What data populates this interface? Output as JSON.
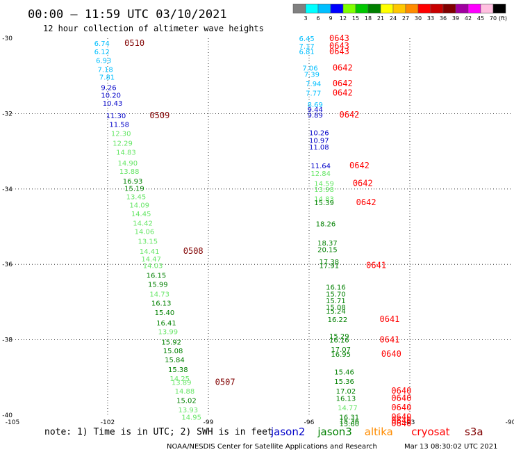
{
  "header": {
    "title": "00:00 – 11:59 UTC 03/10/2021",
    "subtitle": "12 hour collection of altimeter wave heights"
  },
  "colorbar": {
    "labels": [
      "3",
      "6",
      "9",
      "12",
      "15",
      "18",
      "21",
      "24",
      "27",
      "30",
      "33",
      "36",
      "39",
      "42",
      "45",
      "70"
    ],
    "colors": [
      "#808080",
      "#00ffff",
      "#00bfff",
      "#0000ff",
      "#80ff00",
      "#00c800",
      "#008000",
      "#ffff00",
      "#ffc800",
      "#ff8c00",
      "#ff0000",
      "#c80000",
      "#800000",
      "#a000a0",
      "#ff00ff",
      "#ffc0e0",
      "#000000"
    ],
    "unit": "(ft)"
  },
  "footer": {
    "note": "note:  1) Time is in UTC; 2) SWH is in feet",
    "credit": "NOAA/NESDIS Center for Satellite Applications and Research",
    "timestamp": "Mar 13 08:30:02 UTC 2021"
  },
  "legend": [
    {
      "name": "jason2",
      "color": "#0000c8"
    },
    {
      "name": "jason3",
      "color": "#008000"
    },
    {
      "name": "altika",
      "color": "#ff8c00"
    },
    {
      "name": "cryosat",
      "color": "#ff0000"
    },
    {
      "name": "s3a",
      "color": "#800000"
    }
  ],
  "chart_data": {
    "type": "scatter",
    "xlim": [
      -105,
      -90
    ],
    "ylim": [
      -40,
      -30
    ],
    "x_ticks": [
      -105,
      -102,
      -99,
      -96,
      -93,
      -90
    ],
    "x_tick_labels": [
      "-105",
      "-102",
      "-99",
      "-96",
      "-93",
      "-90"
    ],
    "y_ticks": [
      -30,
      -32,
      -34,
      -36,
      -38,
      -40
    ],
    "y_tick_labels": [
      "-30",
      "-32",
      "-34",
      "-36",
      "-38",
      "-40"
    ],
    "grid": "dotted",
    "series": [
      {
        "name": "s3a",
        "points": [
          {
            "x": -102.4,
            "y": -30.13,
            "v": "6.74",
            "c": "#00bfff"
          },
          {
            "x": -102.4,
            "y": -30.35,
            "v": "6.12",
            "c": "#00bfff"
          },
          {
            "x": -102.35,
            "y": -30.58,
            "v": "6.93",
            "c": "#00bfff"
          },
          {
            "x": -102.3,
            "y": -30.82,
            "v": "7.18",
            "c": "#00bfff"
          },
          {
            "x": -102.25,
            "y": -31.02,
            "v": "7.81",
            "c": "#00bfff"
          },
          {
            "x": -102.2,
            "y": -31.3,
            "v": "9.26",
            "c": "#0000c8"
          },
          {
            "x": -102.2,
            "y": -31.5,
            "v": "10.20",
            "c": "#0000c8"
          },
          {
            "x": -102.15,
            "y": -31.72,
            "v": "10.43",
            "c": "#0000c8"
          },
          {
            "x": -102.05,
            "y": -32.05,
            "v": "11.30",
            "c": "#0000c8"
          },
          {
            "x": -101.95,
            "y": -32.28,
            "v": "11.58",
            "c": "#0000c8"
          },
          {
            "x": -101.9,
            "y": -32.52,
            "v": "12.30",
            "c": "#66e666"
          },
          {
            "x": -101.85,
            "y": -32.78,
            "v": "12.29",
            "c": "#66e666"
          },
          {
            "x": -101.75,
            "y": -33.02,
            "v": "14.83",
            "c": "#66e666"
          },
          {
            "x": -101.7,
            "y": -33.3,
            "v": "14.90",
            "c": "#66e666"
          },
          {
            "x": -101.65,
            "y": -33.52,
            "v": "13.88",
            "c": "#66e666"
          },
          {
            "x": -101.55,
            "y": -33.78,
            "v": "16.93",
            "c": "#008000"
          },
          {
            "x": -101.5,
            "y": -33.98,
            "v": "15.19",
            "c": "#008000"
          },
          {
            "x": -101.45,
            "y": -34.2,
            "v": "13.45",
            "c": "#66e666"
          },
          {
            "x": -101.35,
            "y": -34.42,
            "v": "14.09",
            "c": "#66e666"
          },
          {
            "x": -101.3,
            "y": -34.65,
            "v": "14.45",
            "c": "#66e666"
          },
          {
            "x": -101.25,
            "y": -34.9,
            "v": "14.42",
            "c": "#66e666"
          },
          {
            "x": -101.2,
            "y": -35.12,
            "v": "14.06",
            "c": "#66e666"
          },
          {
            "x": -101.1,
            "y": -35.38,
            "v": "13.15",
            "c": "#66e666"
          },
          {
            "x": -101.05,
            "y": -35.65,
            "v": "14.41",
            "c": "#66e666"
          },
          {
            "x": -101.0,
            "y": -35.85,
            "v": "14.47",
            "c": "#66e666"
          },
          {
            "x": -100.95,
            "y": -36.02,
            "v": "14.03",
            "c": "#66e666"
          },
          {
            "x": -100.85,
            "y": -36.28,
            "v": "16.15",
            "c": "#008000"
          },
          {
            "x": -100.8,
            "y": -36.52,
            "v": "15.99",
            "c": "#008000"
          },
          {
            "x": -100.75,
            "y": -36.78,
            "v": "14.73",
            "c": "#66e666"
          },
          {
            "x": -100.7,
            "y": -37.02,
            "v": "16.13",
            "c": "#008000"
          },
          {
            "x": -100.6,
            "y": -37.27,
            "v": "15.40",
            "c": "#008000"
          },
          {
            "x": -100.55,
            "y": -37.55,
            "v": "16.41",
            "c": "#008000"
          },
          {
            "x": -100.5,
            "y": -37.78,
            "v": "13.99",
            "c": "#66e666"
          },
          {
            "x": -100.4,
            "y": -38.05,
            "v": "15.92",
            "c": "#008000"
          },
          {
            "x": -100.35,
            "y": -38.28,
            "v": "15.08",
            "c": "#008000"
          },
          {
            "x": -100.3,
            "y": -38.52,
            "v": "15.84",
            "c": "#008000"
          },
          {
            "x": -100.2,
            "y": -38.78,
            "v": "15.38",
            "c": "#008000"
          },
          {
            "x": -100.15,
            "y": -39.02,
            "v": "14.25",
            "c": "#66e666"
          },
          {
            "x": -100.1,
            "y": -39.12,
            "v": "13.89",
            "c": "#66e666"
          },
          {
            "x": -100.0,
            "y": -39.35,
            "v": "14.88",
            "c": "#66e666"
          },
          {
            "x": -99.95,
            "y": -39.6,
            "v": "15.02",
            "c": "#008000"
          },
          {
            "x": -99.9,
            "y": -39.85,
            "v": "13.93",
            "c": "#66e666"
          },
          {
            "x": -99.8,
            "y": -40.05,
            "v": "14.95",
            "c": "#66e666"
          }
        ]
      },
      {
        "name": "cryosat",
        "points": [
          {
            "x": -96.3,
            "y": -30.0,
            "v": "6.45",
            "c": "#00bfff"
          },
          {
            "x": -96.3,
            "y": -30.2,
            "v": "7.17",
            "c": "#00bfff"
          },
          {
            "x": -96.3,
            "y": -30.35,
            "v": "6.81",
            "c": "#00bfff"
          },
          {
            "x": -96.2,
            "y": -30.78,
            "v": "7.06",
            "c": "#00bfff"
          },
          {
            "x": -96.15,
            "y": -30.95,
            "v": "7.39",
            "c": "#00bfff"
          },
          {
            "x": -96.1,
            "y": -31.2,
            "v": "7.94",
            "c": "#00bfff"
          },
          {
            "x": -96.1,
            "y": -31.45,
            "v": "7.77",
            "c": "#00bfff"
          },
          {
            "x": -96.05,
            "y": -31.75,
            "v": "8.69",
            "c": "#00bfff"
          },
          {
            "x": -96.05,
            "y": -31.88,
            "v": "9.44",
            "c": "#0000c8"
          },
          {
            "x": -96.05,
            "y": -32.03,
            "v": "9.89",
            "c": "#0000c8"
          },
          {
            "x": -96.0,
            "y": -32.5,
            "v": "10.26",
            "c": "#0000c8"
          },
          {
            "x": -96.0,
            "y": -32.7,
            "v": "10.97",
            "c": "#0000c8"
          },
          {
            "x": -96.0,
            "y": -32.88,
            "v": "11.08",
            "c": "#0000c8"
          },
          {
            "x": -95.95,
            "y": -33.38,
            "v": "11.64",
            "c": "#0000c8"
          },
          {
            "x": -95.95,
            "y": -33.58,
            "v": "12.84",
            "c": "#66e666"
          },
          {
            "x": -95.85,
            "y": -33.85,
            "v": "14.59",
            "c": "#66e666"
          },
          {
            "x": -95.85,
            "y": -34.0,
            "v": "13.98",
            "c": "#66e666"
          },
          {
            "x": -95.85,
            "y": -34.25,
            "v": "14.83",
            "c": "#66e666"
          },
          {
            "x": -95.85,
            "y": -34.35,
            "v": "15.39",
            "c": "#008000"
          },
          {
            "x": -95.8,
            "y": -34.92,
            "v": "18.26",
            "c": "#008000"
          },
          {
            "x": -95.75,
            "y": -35.42,
            "v": "18.37",
            "c": "#008000"
          },
          {
            "x": -95.75,
            "y": -35.6,
            "v": "20.15",
            "c": "#008000"
          },
          {
            "x": -95.7,
            "y": -35.92,
            "v": "17.38",
            "c": "#008000"
          },
          {
            "x": -95.7,
            "y": -36.02,
            "v": "17.91",
            "c": "#008000"
          },
          {
            "x": -95.5,
            "y": -36.6,
            "v": "16.16",
            "c": "#008000"
          },
          {
            "x": -95.5,
            "y": -36.78,
            "v": "15.70",
            "c": "#008000"
          },
          {
            "x": -95.5,
            "y": -36.96,
            "v": "15.71",
            "c": "#008000"
          },
          {
            "x": -95.5,
            "y": -37.13,
            "v": "15.08",
            "c": "#008000"
          },
          {
            "x": -95.5,
            "y": -37.23,
            "v": "15.24",
            "c": "#008000"
          },
          {
            "x": -95.45,
            "y": -37.45,
            "v": "16.22",
            "c": "#008000"
          },
          {
            "x": -95.4,
            "y": -37.9,
            "v": "15.29",
            "c": "#008000"
          },
          {
            "x": -95.4,
            "y": -38.0,
            "v": "16.16",
            "c": "#008000"
          },
          {
            "x": -95.35,
            "y": -38.25,
            "v": "17.07",
            "c": "#008000"
          },
          {
            "x": -95.35,
            "y": -38.38,
            "v": "16.95",
            "c": "#008000"
          },
          {
            "x": -95.25,
            "y": -38.85,
            "v": "15.46",
            "c": "#008000"
          },
          {
            "x": -95.25,
            "y": -39.1,
            "v": "15.36",
            "c": "#008000"
          },
          {
            "x": -95.2,
            "y": -39.35,
            "v": "17.02",
            "c": "#008000"
          },
          {
            "x": -95.2,
            "y": -39.55,
            "v": "16.13",
            "c": "#008000"
          },
          {
            "x": -95.15,
            "y": -39.8,
            "v": "14.77",
            "c": "#66e666"
          },
          {
            "x": -95.1,
            "y": -40.05,
            "v": "16.31",
            "c": "#008000"
          },
          {
            "x": -95.1,
            "y": -40.15,
            "v": "15.36",
            "c": "#008000"
          },
          {
            "x": -95.1,
            "y": -40.22,
            "v": "15.60",
            "c": "#008000"
          }
        ]
      }
    ],
    "time_labels": [
      {
        "x": -101.5,
        "y": -30.13,
        "t": "0510",
        "c": "#800000"
      },
      {
        "x": -100.75,
        "y": -32.05,
        "t": "0509",
        "c": "#800000"
      },
      {
        "x": -99.75,
        "y": -35.65,
        "t": "0508",
        "c": "#800000"
      },
      {
        "x": -98.8,
        "y": -39.12,
        "t": "0507",
        "c": "#800000"
      },
      {
        "x": -95.4,
        "y": -30.0,
        "t": "0643",
        "c": "#ff0000"
      },
      {
        "x": -95.4,
        "y": -30.2,
        "t": "0643",
        "c": "#ff0000"
      },
      {
        "x": -95.4,
        "y": -30.35,
        "t": "0643",
        "c": "#ff0000"
      },
      {
        "x": -95.3,
        "y": -30.78,
        "t": "0642",
        "c": "#ff0000"
      },
      {
        "x": -95.3,
        "y": -31.2,
        "t": "0642",
        "c": "#ff0000"
      },
      {
        "x": -95.3,
        "y": -31.45,
        "t": "0642",
        "c": "#ff0000"
      },
      {
        "x": -95.1,
        "y": -32.03,
        "t": "0642",
        "c": "#ff0000"
      },
      {
        "x": -94.8,
        "y": -33.38,
        "t": "0642",
        "c": "#ff0000"
      },
      {
        "x": -94.7,
        "y": -33.85,
        "t": "0642",
        "c": "#ff0000"
      },
      {
        "x": -94.6,
        "y": -34.35,
        "t": "0642",
        "c": "#ff0000"
      },
      {
        "x": -94.3,
        "y": -36.02,
        "t": "0641",
        "c": "#ff0000"
      },
      {
        "x": -93.9,
        "y": -37.45,
        "t": "0641",
        "c": "#ff0000"
      },
      {
        "x": -93.9,
        "y": -38.0,
        "t": "0641",
        "c": "#ff0000"
      },
      {
        "x": -93.85,
        "y": -38.38,
        "t": "0640",
        "c": "#ff0000"
      },
      {
        "x": -93.55,
        "y": -39.35,
        "t": "0640",
        "c": "#ff0000"
      },
      {
        "x": -93.55,
        "y": -39.55,
        "t": "0640",
        "c": "#ff0000"
      },
      {
        "x": -93.55,
        "y": -39.8,
        "t": "0640",
        "c": "#ff0000"
      },
      {
        "x": -93.55,
        "y": -40.05,
        "t": "0640",
        "c": "#ff0000"
      },
      {
        "x": -93.55,
        "y": -40.15,
        "t": "0640",
        "c": "#ff0000"
      },
      {
        "x": -93.55,
        "y": -40.22,
        "t": "0640",
        "c": "#ff0000"
      }
    ]
  }
}
